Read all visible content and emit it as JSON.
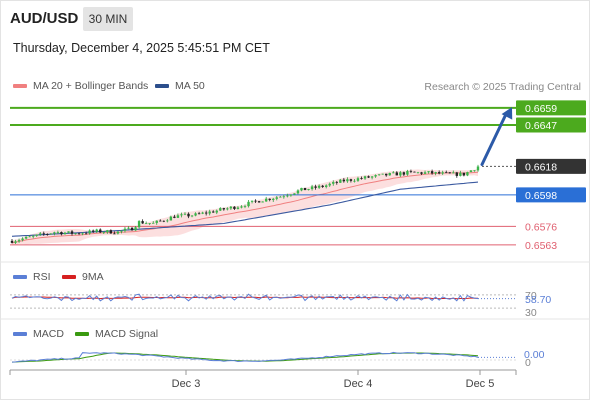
{
  "header": {
    "symbol": "AUD/USD",
    "timeframe": "30 MIN",
    "datetime": "Thursday, December 4, 2025 5:45:51 PM CET",
    "copyright": "Research © 2025 Trading Central"
  },
  "legend": {
    "main": [
      {
        "label": "MA 20 + Bollinger Bands",
        "color": "#f08080"
      },
      {
        "label": "MA 50",
        "color": "#2c4f8c"
      }
    ],
    "rsi": [
      {
        "label": "RSI",
        "color": "#5b7fd6"
      },
      {
        "label": "9MA",
        "color": "#d62020"
      }
    ],
    "macd": [
      {
        "label": "MACD",
        "color": "#5b7fd6"
      },
      {
        "label": "MACD Signal",
        "color": "#3a9a10"
      }
    ]
  },
  "chart_data": {
    "type": "candlestick",
    "x_ticks": [
      "Dec 3",
      "Dec 4",
      "Dec 5"
    ],
    "price_range": [
      0.6551,
      0.6668
    ],
    "levels": [
      {
        "label": "0.6659",
        "value": 0.6659,
        "color": "#4caa1e",
        "kind": "resistance"
      },
      {
        "label": "0.6647",
        "value": 0.6647,
        "color": "#4caa1e",
        "kind": "resistance"
      },
      {
        "label": "0.6618",
        "value": 0.6618,
        "color": "#333333",
        "kind": "last"
      },
      {
        "label": "0.6598",
        "value": 0.6598,
        "color": "#2a6fd6",
        "kind": "pivot"
      },
      {
        "label": "0.6576",
        "value": 0.6576,
        "color": "#e06070",
        "kind": "support"
      },
      {
        "label": "0.6563",
        "value": 0.6563,
        "color": "#e06070",
        "kind": "support"
      }
    ],
    "rsi": {
      "value_label": "58.70",
      "levels": [
        "70",
        "30"
      ],
      "range": [
        0,
        100
      ],
      "current": 58.7
    },
    "macd": {
      "value_label": "0.00",
      "zero_label": "0"
    },
    "price_anchors": [
      [
        0,
        0.65658
      ],
      [
        6,
        0.65688
      ],
      [
        12,
        0.6572
      ],
      [
        18,
        0.6571
      ],
      [
        24,
        0.65725
      ],
      [
        30,
        0.6572
      ],
      [
        34,
        0.65745
      ],
      [
        36,
        0.6579
      ],
      [
        40,
        0.6578
      ],
      [
        46,
        0.6583
      ],
      [
        52,
        0.6584
      ],
      [
        58,
        0.6587
      ],
      [
        64,
        0.659
      ],
      [
        70,
        0.6594
      ],
      [
        76,
        0.6597
      ],
      [
        82,
        0.66015
      ],
      [
        88,
        0.6604
      ],
      [
        94,
        0.6608
      ],
      [
        100,
        0.661
      ],
      [
        106,
        0.6612
      ],
      [
        112,
        0.66135
      ],
      [
        118,
        0.66135
      ],
      [
        124,
        0.66125
      ],
      [
        128,
        0.66125
      ],
      [
        131,
        0.66165
      ],
      [
        132,
        0.6618
      ]
    ],
    "ma50_anchors": [
      [
        0,
        0.6569
      ],
      [
        30,
        0.6573
      ],
      [
        60,
        0.6578
      ],
      [
        90,
        0.6591
      ],
      [
        110,
        0.6602
      ],
      [
        132,
        0.6607
      ]
    ]
  }
}
